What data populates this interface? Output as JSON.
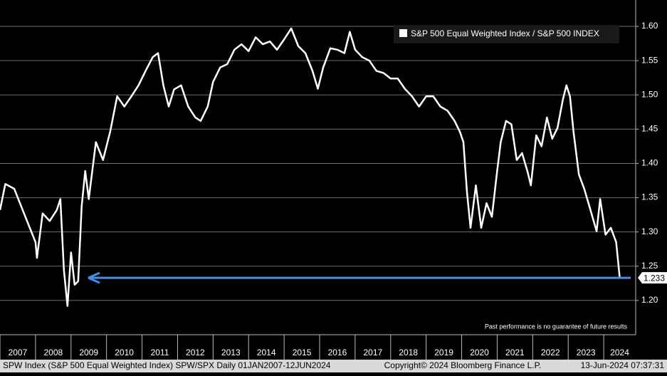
{
  "chart_data": {
    "type": "line",
    "legend": "S&P 500 Equal Weighted Index / S&P 500 INDEX",
    "note": "Past performance is no guarantee of future results",
    "footer_left": "SPW Index (S&P 500 Equal Weighted Index) SPW/SPX  Daily 01JAN2007-12JUN2024",
    "footer_center": "Copyright© 2024 Bloomberg Finance L.P.",
    "footer_right": "13-Jun-2024 07:37:31",
    "last_value_label": "1.233",
    "arrow_color": "#3d8fe8",
    "grid": true,
    "xlim": [
      2007,
      2024.9
    ],
    "ylim": [
      1.15,
      1.6385
    ],
    "xticks": [
      2007,
      2008,
      2009,
      2010,
      2011,
      2012,
      2013,
      2014,
      2015,
      2016,
      2017,
      2018,
      2019,
      2020,
      2021,
      2022,
      2023,
      2024
    ],
    "yticks": [
      {
        "value": 1.2,
        "label": "1.20"
      },
      1.25,
      {
        "value": 1.3,
        "label": "1.30"
      },
      1.35,
      {
        "value": 1.4,
        "label": "1.40"
      },
      1.45,
      {
        "value": 1.5,
        "label": "1.50"
      },
      1.55,
      {
        "value": 1.6,
        "label": "1.60"
      }
    ],
    "x": [
      2007.0,
      2007.15,
      2007.4,
      2007.6,
      2007.8,
      2008.0,
      2008.04,
      2008.2,
      2008.4,
      2008.6,
      2008.7,
      2008.8,
      2008.9,
      2009.0,
      2009.1,
      2009.2,
      2009.3,
      2009.4,
      2009.5,
      2009.7,
      2009.9,
      2010.1,
      2010.3,
      2010.5,
      2010.7,
      2010.9,
      2011.1,
      2011.3,
      2011.45,
      2011.6,
      2011.75,
      2011.9,
      2012.1,
      2012.3,
      2012.5,
      2012.65,
      2012.85,
      2013.0,
      2013.2,
      2013.4,
      2013.6,
      2013.8,
      2014.0,
      2014.2,
      2014.4,
      2014.6,
      2014.8,
      2015.0,
      2015.2,
      2015.4,
      2015.6,
      2015.8,
      2015.95,
      2016.1,
      2016.3,
      2016.5,
      2016.7,
      2016.85,
      2017.0,
      2017.2,
      2017.4,
      2017.6,
      2017.8,
      2018.0,
      2018.2,
      2018.4,
      2018.6,
      2018.8,
      2019.0,
      2019.2,
      2019.4,
      2019.6,
      2019.8,
      2019.95,
      2020.05,
      2020.15,
      2020.25,
      2020.4,
      2020.55,
      2020.7,
      2020.85,
      2021.0,
      2021.1,
      2021.25,
      2021.4,
      2021.55,
      2021.7,
      2021.85,
      2021.95,
      2022.1,
      2022.25,
      2022.4,
      2022.55,
      2022.7,
      2022.85,
      2022.95,
      2023.05,
      2023.15,
      2023.3,
      2023.45,
      2023.6,
      2023.8,
      2023.9,
      2024.05,
      2024.2,
      2024.35,
      2024.45
    ],
    "series": [
      {
        "name": "S&P 500 Equal Weighted Index / S&P 500 INDEX",
        "color": "#ffffff",
        "values": [
          1.332,
          1.37,
          1.363,
          1.337,
          1.311,
          1.285,
          1.262,
          1.327,
          1.316,
          1.332,
          1.348,
          1.244,
          1.192,
          1.27,
          1.223,
          1.228,
          1.337,
          1.389,
          1.348,
          1.431,
          1.405,
          1.446,
          1.498,
          1.483,
          1.498,
          1.514,
          1.535,
          1.555,
          1.561,
          1.514,
          1.483,
          1.508,
          1.514,
          1.483,
          1.467,
          1.462,
          1.483,
          1.519,
          1.54,
          1.545,
          1.566,
          1.574,
          1.564,
          1.584,
          1.574,
          1.578,
          1.566,
          1.581,
          1.597,
          1.571,
          1.561,
          1.535,
          1.509,
          1.54,
          1.568,
          1.566,
          1.561,
          1.592,
          1.566,
          1.555,
          1.55,
          1.535,
          1.532,
          1.524,
          1.524,
          1.509,
          1.498,
          1.483,
          1.498,
          1.498,
          1.483,
          1.477,
          1.462,
          1.446,
          1.431,
          1.358,
          1.306,
          1.368,
          1.306,
          1.342,
          1.322,
          1.389,
          1.431,
          1.462,
          1.457,
          1.405,
          1.415,
          1.389,
          1.368,
          1.441,
          1.425,
          1.467,
          1.436,
          1.452,
          1.493,
          1.514,
          1.498,
          1.446,
          1.384,
          1.363,
          1.337,
          1.301,
          1.348,
          1.296,
          1.306,
          1.285,
          1.233
        ]
      }
    ]
  }
}
